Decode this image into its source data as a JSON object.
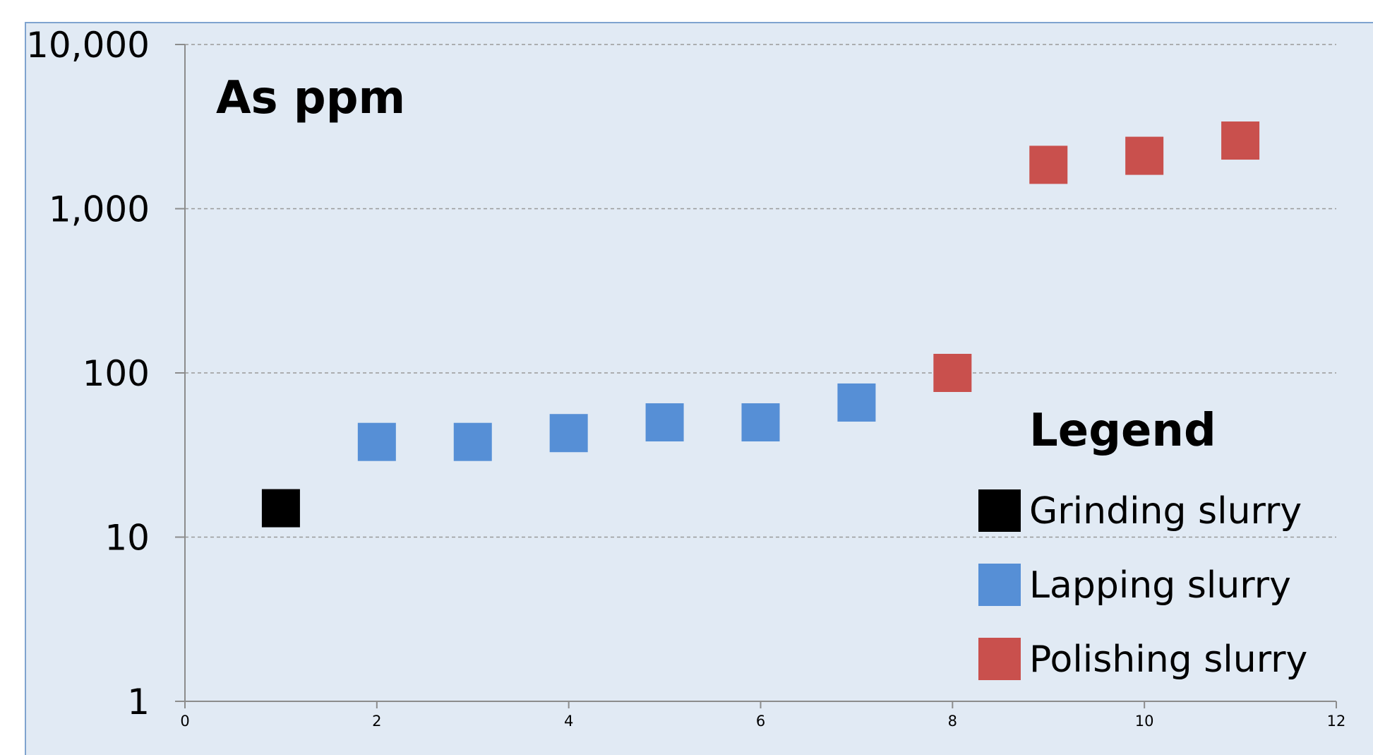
{
  "chart_data": {
    "type": "scatter",
    "title": "As ppm",
    "xlabel": "",
    "ylabel": "",
    "y_scale": "log",
    "xlim": [
      0,
      12
    ],
    "ylim": [
      1,
      10000
    ],
    "x_ticks": [
      "0",
      "2",
      "4",
      "6",
      "8",
      "10",
      "12"
    ],
    "y_ticks": [
      "1",
      "10",
      "100",
      "1,000",
      "10,000"
    ],
    "grid": "horizontal dashed",
    "legend_title": "Legend",
    "legend_position": "bottom-right",
    "colors": {
      "background": "#e1eaf4",
      "border": "#7fa3cf",
      "axis": "#8c8c8c",
      "grid": "#9a9a9a"
    },
    "series": [
      {
        "name": "Grinding slurry",
        "color": "#000000",
        "marker": "square",
        "points": [
          {
            "x": 1,
            "y": 15
          }
        ]
      },
      {
        "name": "Lapping slurry",
        "color": "#568fd6",
        "marker": "square",
        "points": [
          {
            "x": 2,
            "y": 38
          },
          {
            "x": 3,
            "y": 38
          },
          {
            "x": 4,
            "y": 43
          },
          {
            "x": 5,
            "y": 50
          },
          {
            "x": 6,
            "y": 50
          },
          {
            "x": 7,
            "y": 66
          }
        ]
      },
      {
        "name": "Polishing slurry",
        "color": "#c9504d",
        "marker": "square",
        "points": [
          {
            "x": 8,
            "y": 100
          },
          {
            "x": 9,
            "y": 1850
          },
          {
            "x": 10,
            "y": 2100
          },
          {
            "x": 11,
            "y": 2600
          }
        ]
      }
    ]
  }
}
